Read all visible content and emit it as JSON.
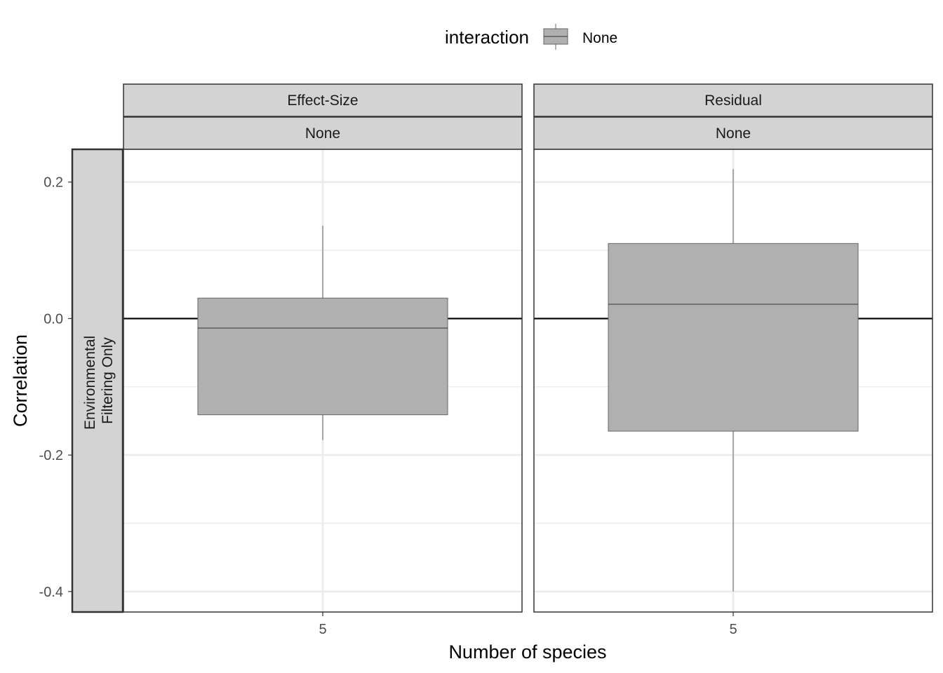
{
  "chart_data": {
    "type": "box",
    "ylabel": "Correlation",
    "xlabel": "Number of species",
    "legend": {
      "title": "interaction",
      "position": "top",
      "entries": [
        {
          "label": "None",
          "fill": "#b0b0b0"
        }
      ]
    },
    "ylim": [
      -0.43,
      0.248
    ],
    "yticks": [
      0.2,
      0.0,
      -0.2,
      -0.4
    ],
    "ytick_labels": [
      "0.2",
      "0.0",
      "-0.2",
      "-0.4"
    ],
    "x_categories": [
      "5"
    ],
    "row_strip": {
      "line1": "Environmental",
      "line2": "Filtering Only"
    },
    "reference_line_y": 0,
    "grid": true,
    "panels": [
      {
        "strip_top": "Effect-Size",
        "strip_sub": "None",
        "x_tick": "5",
        "box": {
          "whisker_low": -0.178,
          "q1": -0.141,
          "median": -0.014,
          "q3": 0.03,
          "whisker_high": 0.136
        }
      },
      {
        "strip_top": "Residual",
        "strip_sub": "None",
        "x_tick": "5",
        "box": {
          "whisker_low": -0.4,
          "q1": -0.165,
          "median": 0.021,
          "q3": 0.11,
          "whisker_high": 0.219
        }
      }
    ],
    "colors": {
      "box_fill": "#b0b0b0",
      "box_stroke": "#666666",
      "strip_fill": "#d3d3d3",
      "grid": "#ebebeb"
    }
  }
}
